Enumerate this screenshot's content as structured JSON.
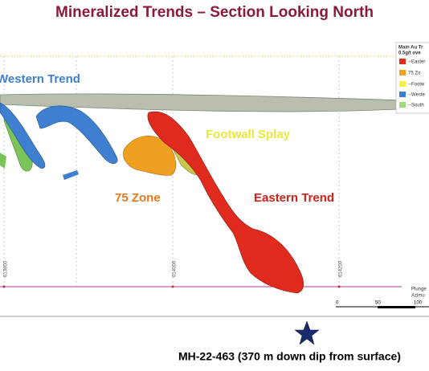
{
  "title": "Mineralized Trends – Section Looking North",
  "labels": {
    "western_trend": "Western Trend",
    "footwall_splay": "Footwall Splay",
    "zone_75": "75 Zone",
    "eastern_trend": "Eastern Trend"
  },
  "legend": {
    "title": [
      "Main Au Tr",
      "0.5g/t ove"
    ],
    "items": [
      "--Easter",
      "75 Zo",
      "--Footw",
      "--Weste",
      "--South"
    ]
  },
  "grid_labels": [
    "613800",
    "614000",
    "614200"
  ],
  "scale_ticks": [
    "0",
    "50",
    "100"
  ],
  "plunge": [
    "Plunge",
    "Azimu"
  ],
  "caption": "MH-22-463  (370 m down dip from surface)"
}
